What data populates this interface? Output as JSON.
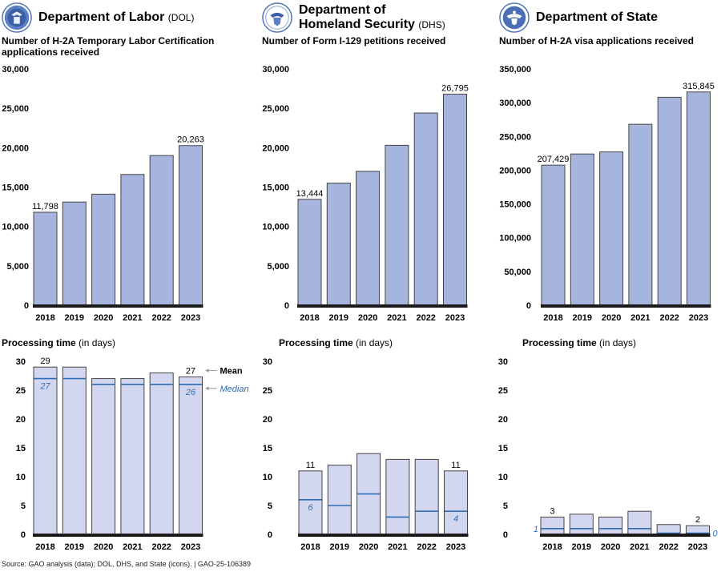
{
  "colors": {
    "bar_fill": "#a6b4de",
    "proc_fill": "#d2d7ef",
    "bar_stroke": "#444444",
    "median_line": "#2e6db4",
    "baseline": "#1a1a1a",
    "arrow": "#999999"
  },
  "panels": [
    {
      "id": "dol",
      "dept_name": "Department of Labor",
      "dept_abbr": "(DOL)",
      "seal_icon": "dol-seal-icon",
      "metric_title": "Number of H-2A Temporary Labor Certification applications received",
      "proc_title_bold": "Processing time",
      "proc_title_rest": " (in days)"
    },
    {
      "id": "dhs",
      "dept_name_line1": "Department of",
      "dept_name_line2": "Homeland Security",
      "dept_abbr": "(DHS)",
      "seal_icon": "dhs-seal-icon",
      "metric_title": "Number of Form I-129 petitions received",
      "proc_title_bold": "Processing time",
      "proc_title_rest": " (in days)"
    },
    {
      "id": "state",
      "dept_name": "Department of State",
      "seal_icon": "state-seal-icon",
      "metric_title": "Number of H-2A visa applications received",
      "proc_title_bold": "Processing time",
      "proc_title_rest": " (in days)"
    }
  ],
  "legend": {
    "mean": "Mean",
    "median": "Median"
  },
  "source": "Source: GAO analysis (data); DOL, DHS, and State (icons).  |  GAO-25-106389",
  "chart_data": [
    {
      "id": "dol-volume",
      "type": "bar",
      "title": "Number of H-2A Temporary Labor Certification applications received",
      "categories": [
        "2018",
        "2019",
        "2020",
        "2021",
        "2022",
        "2023"
      ],
      "values": [
        11798,
        13100,
        14100,
        16600,
        19000,
        20263
      ],
      "data_labels": {
        "0": "11,798",
        "5": "20,263"
      },
      "ylim": [
        0,
        30000
      ],
      "yticks": [
        0,
        5000,
        10000,
        15000,
        20000,
        25000,
        30000
      ],
      "ytick_labels": [
        "0",
        "5,000",
        "10,000",
        "15,000",
        "20,000",
        "25,000",
        "30,000"
      ],
      "grid": false
    },
    {
      "id": "dhs-volume",
      "type": "bar",
      "title": "Number of Form I-129 petitions received",
      "categories": [
        "2018",
        "2019",
        "2020",
        "2021",
        "2022",
        "2023"
      ],
      "values": [
        13444,
        15500,
        17000,
        20300,
        24400,
        26795
      ],
      "data_labels": {
        "0": "13,444",
        "5": "26,795"
      },
      "ylim": [
        0,
        30000
      ],
      "yticks": [
        0,
        5000,
        10000,
        15000,
        20000,
        25000,
        30000
      ],
      "ytick_labels": [
        "0",
        "5,000",
        "10,000",
        "15,000",
        "20,000",
        "25,000",
        "30,000"
      ],
      "grid": false
    },
    {
      "id": "state-volume",
      "type": "bar",
      "title": "Number of H-2A visa applications received",
      "categories": [
        "2018",
        "2019",
        "2020",
        "2021",
        "2022",
        "2023"
      ],
      "values": [
        207429,
        224000,
        227000,
        268000,
        308000,
        315845
      ],
      "data_labels": {
        "0": "207,429",
        "5": "315,845"
      },
      "ylim": [
        0,
        350000
      ],
      "yticks": [
        0,
        50000,
        100000,
        150000,
        200000,
        250000,
        300000,
        350000
      ],
      "ytick_labels": [
        "0",
        "50,000",
        "100,000",
        "150,000",
        "200,000",
        "250,000",
        "300,000",
        "350,000"
      ],
      "grid": false
    },
    {
      "id": "dol-processing",
      "type": "bar",
      "title": "Processing time (in days)",
      "categories": [
        "2018",
        "2019",
        "2020",
        "2021",
        "2022",
        "2023"
      ],
      "series": [
        {
          "name": "Mean",
          "values": [
            29,
            29,
            27,
            27,
            28,
            27.3
          ]
        },
        {
          "name": "Median",
          "values": [
            27,
            27,
            26,
            26,
            26,
            26
          ]
        }
      ],
      "mean_labels": {
        "0": "29",
        "5": "27"
      },
      "median_labels": {
        "0": "27",
        "5": "26"
      },
      "legend": "right",
      "ylim": [
        0,
        30
      ],
      "yticks": [
        0,
        5,
        10,
        15,
        20,
        25,
        30
      ],
      "ytick_labels": [
        "0",
        "5",
        "10",
        "15",
        "20",
        "25",
        "30"
      ],
      "grid": false
    },
    {
      "id": "dhs-processing",
      "type": "bar",
      "title": "Processing time (in days)",
      "categories": [
        "2018",
        "2019",
        "2020",
        "2021",
        "2022",
        "2023"
      ],
      "series": [
        {
          "name": "Mean",
          "values": [
            11,
            12,
            14,
            13,
            13,
            11
          ]
        },
        {
          "name": "Median",
          "values": [
            6,
            5,
            7,
            3,
            4,
            4
          ]
        }
      ],
      "mean_labels": {
        "0": "11",
        "5": "11"
      },
      "median_labels": {
        "0": "6",
        "5": "4"
      },
      "ylim": [
        0,
        30
      ],
      "yticks": [
        0,
        5,
        10,
        15,
        20,
        25,
        30
      ],
      "ytick_labels": [
        "0",
        "5",
        "10",
        "15",
        "20",
        "25",
        "30"
      ],
      "grid": false
    },
    {
      "id": "state-processing",
      "type": "bar",
      "title": "Processing time (in days)",
      "categories": [
        "2018",
        "2019",
        "2020",
        "2021",
        "2022",
        "2023"
      ],
      "series": [
        {
          "name": "Mean",
          "values": [
            3,
            3.5,
            3,
            4,
            1.7,
            1.5
          ]
        },
        {
          "name": "Median",
          "values": [
            1,
            1,
            1,
            1,
            0,
            0
          ]
        }
      ],
      "mean_labels": {
        "0": "3",
        "5": "2"
      },
      "median_labels_outside": {
        "0": "1",
        "5": "0"
      },
      "ylim": [
        0,
        30
      ],
      "yticks": [
        0,
        5,
        10,
        15,
        20,
        25,
        30
      ],
      "ytick_labels": [
        "0",
        "5",
        "10",
        "15",
        "20",
        "25",
        "30"
      ],
      "grid": false
    }
  ]
}
